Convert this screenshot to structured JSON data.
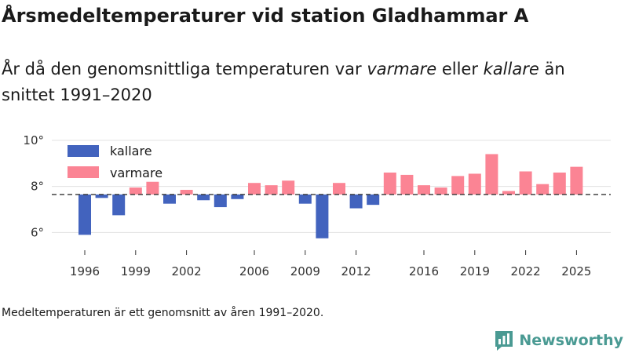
{
  "title": "Årsmedeltemperaturer vid station Gladhammar A",
  "subtitle": {
    "part1": "År då den genomsnittliga temperaturen var ",
    "warm_word": "varmare",
    "part2": " eller ",
    "cold_word": "kallare",
    "part3": " än snittet 1991–2020"
  },
  "footnote": "Medeltemperaturen är ett genomsnitt av åren 1991–2020.",
  "brand": {
    "name": "Newsworthy",
    "icon": "bar-chart-logo-icon"
  },
  "colors": {
    "colder": "#4263be",
    "warmer": "#fb8494",
    "baseline": "#333333",
    "grid": "#e0e0e0",
    "brand": "#4a9a93"
  },
  "chart_data": {
    "type": "bar",
    "baseline": 7.65,
    "ylim": [
      5.3,
      10.3
    ],
    "yticks": [
      6,
      8,
      10
    ],
    "ytick_labels": [
      "6°",
      "8°",
      "10°"
    ],
    "xticks": [
      1996,
      1999,
      2002,
      2006,
      2009,
      2012,
      2016,
      2019,
      2022,
      2025
    ],
    "legend": {
      "colder": "kallare",
      "warmer": "varmare"
    },
    "series": [
      {
        "year": 1996,
        "value": 5.9
      },
      {
        "year": 1997,
        "value": 7.5
      },
      {
        "year": 1998,
        "value": 6.75
      },
      {
        "year": 1999,
        "value": 7.95
      },
      {
        "year": 2000,
        "value": 8.2
      },
      {
        "year": 2001,
        "value": 7.25
      },
      {
        "year": 2002,
        "value": 7.85
      },
      {
        "year": 2003,
        "value": 7.4
      },
      {
        "year": 2004,
        "value": 7.1
      },
      {
        "year": 2005,
        "value": 7.45
      },
      {
        "year": 2006,
        "value": 8.15
      },
      {
        "year": 2007,
        "value": 8.05
      },
      {
        "year": 2008,
        "value": 8.25
      },
      {
        "year": 2009,
        "value": 7.25
      },
      {
        "year": 2010,
        "value": 5.75
      },
      {
        "year": 2011,
        "value": 8.15
      },
      {
        "year": 2012,
        "value": 7.05
      },
      {
        "year": 2013,
        "value": 7.2
      },
      {
        "year": 2014,
        "value": 8.6
      },
      {
        "year": 2015,
        "value": 8.5
      },
      {
        "year": 2016,
        "value": 8.05
      },
      {
        "year": 2017,
        "value": 7.95
      },
      {
        "year": 2018,
        "value": 8.45
      },
      {
        "year": 2019,
        "value": 8.55
      },
      {
        "year": 2020,
        "value": 9.4
      },
      {
        "year": 2021,
        "value": 7.8
      },
      {
        "year": 2022,
        "value": 8.65
      },
      {
        "year": 2023,
        "value": 8.1
      },
      {
        "year": 2024,
        "value": 8.6
      },
      {
        "year": 2025,
        "value": 8.85
      }
    ]
  }
}
